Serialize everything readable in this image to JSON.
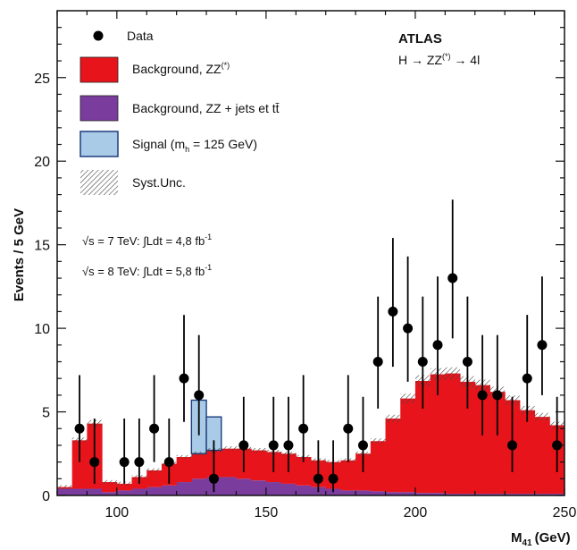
{
  "chart_data": {
    "type": "bar",
    "xlabel": "M",
    "xlabel_sub": "41",
    "xlabel_unit": "(GeV)",
    "ylabel": "Events / 5 GeV",
    "xlim": [
      80,
      250
    ],
    "ylim": [
      0,
      29
    ],
    "x_ticks": [
      100,
      150,
      200,
      250
    ],
    "y_ticks": [
      0,
      5,
      10,
      15,
      20,
      25
    ],
    "grid": false,
    "legend_position": "top-left",
    "bin_edges": [
      80,
      85,
      90,
      95,
      100,
      105,
      110,
      115,
      120,
      125,
      130,
      135,
      140,
      145,
      150,
      155,
      160,
      165,
      170,
      175,
      180,
      185,
      190,
      195,
      200,
      205,
      210,
      215,
      220,
      225,
      230,
      235,
      240,
      245,
      250
    ],
    "series": [
      {
        "name": "Background, ZZ + jets et tt̄",
        "key": "zzjets",
        "color": "#7a3d9e",
        "values": [
          0.4,
          0.4,
          0.4,
          0.2,
          0.3,
          0.4,
          0.5,
          0.6,
          0.8,
          1.0,
          1.1,
          1.1,
          1.0,
          0.9,
          0.8,
          0.7,
          0.6,
          0.5,
          0.4,
          0.3,
          0.3,
          0.25,
          0.2,
          0.2,
          0.15,
          0.15,
          0.1,
          0.1,
          0.1,
          0.1,
          0.1,
          0.1,
          0.1,
          0.1
        ]
      },
      {
        "name": "Background, ZZ(*)",
        "key": "zz",
        "color": "#e8141b",
        "values": [
          0.1,
          2.9,
          3.9,
          0.6,
          0.4,
          0.7,
          1.0,
          1.3,
          1.5,
          1.5,
          1.6,
          1.7,
          1.8,
          1.8,
          1.8,
          1.8,
          1.7,
          1.6,
          1.6,
          1.8,
          2.2,
          3.0,
          4.4,
          5.6,
          6.7,
          7.1,
          7.2,
          6.7,
          6.5,
          6.1,
          5.6,
          5.0,
          4.6,
          4.1
        ]
      },
      {
        "name": "Signal (mh = 125 GeV)",
        "key": "signal",
        "color": "#a9cbe8",
        "values": [
          0,
          0,
          0,
          0,
          0,
          0,
          0,
          0,
          0,
          3.2,
          2.0,
          0,
          0,
          0,
          0,
          0,
          0,
          0,
          0,
          0,
          0,
          0,
          0,
          0,
          0,
          0,
          0,
          0,
          0,
          0,
          0,
          0,
          0,
          0
        ]
      }
    ],
    "data_points": {
      "name": "Data",
      "x": [
        87.5,
        92.5,
        102.5,
        107.5,
        112.5,
        117.5,
        122.5,
        127.5,
        132.5,
        142.5,
        152.5,
        157.5,
        162.5,
        167.5,
        172.5,
        177.5,
        182.5,
        187.5,
        192.5,
        197.5,
        202.5,
        207.5,
        212.5,
        217.5,
        222.5,
        227.5,
        232.5,
        237.5,
        242.5,
        247.5
      ],
      "y": [
        4,
        2,
        2,
        2,
        4,
        2,
        7,
        6,
        1,
        3,
        3,
        3,
        4,
        1,
        1,
        4,
        3,
        8,
        11,
        10,
        8,
        9,
        13,
        8,
        6,
        6,
        3,
        7,
        9,
        3
      ],
      "yerr_low": [
        2.0,
        1.3,
        1.3,
        1.3,
        2.0,
        1.3,
        2.6,
        2.4,
        0.8,
        1.6,
        1.6,
        1.6,
        2.0,
        0.8,
        0.8,
        2.0,
        1.6,
        2.8,
        3.3,
        3.2,
        2.8,
        3.0,
        3.6,
        2.8,
        2.4,
        2.4,
        1.6,
        2.6,
        3.0,
        1.6
      ],
      "yerr_high": [
        3.2,
        2.6,
        2.6,
        2.6,
        3.2,
        2.6,
        3.8,
        3.6,
        2.3,
        2.9,
        2.9,
        2.9,
        3.2,
        2.3,
        2.3,
        3.2,
        2.9,
        3.9,
        4.4,
        4.3,
        3.9,
        4.1,
        4.7,
        3.9,
        3.6,
        3.6,
        2.9,
        3.8,
        4.1,
        2.9
      ]
    },
    "syst_unc_fraction": 0.05,
    "legend": [
      {
        "key": "data",
        "label": "Data"
      },
      {
        "key": "zz",
        "label": "Background, ZZ",
        "sup": "(*)"
      },
      {
        "key": "zzjets",
        "label": "Background, ZZ + jets et tt̄"
      },
      {
        "key": "signal",
        "label": "Signal (m",
        "sub": "h",
        "tail": " = 125 GeV)"
      },
      {
        "key": "syst",
        "label": "Syst.Unc."
      }
    ],
    "annotations": {
      "experiment": "ATLAS",
      "process_h": "H → ZZ",
      "process_sup": "(*)",
      "process_tail": " → 4l",
      "lumi_7_root": "√s",
      "lumi_7_rest": " = 7 TeV: ∫Ldt = 4,8 fb",
      "lumi_7_sup": "-1",
      "lumi_8_root": "√s",
      "lumi_8_rest": " = 8 TeV: ∫Ldt = 5,8 fb",
      "lumi_8_sup": "-1"
    }
  }
}
